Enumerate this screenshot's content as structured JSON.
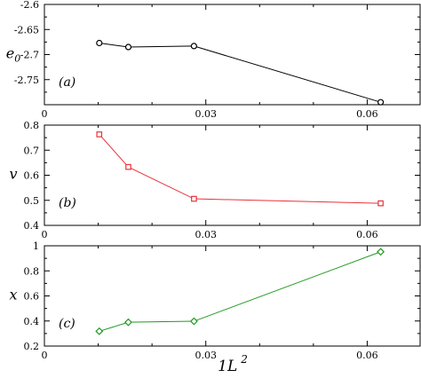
{
  "chart_data": [
    {
      "type": "line",
      "panel_label": "(a)",
      "ylabel": "e",
      "ylabel_sub": "0",
      "x": [
        0.0102,
        0.0156,
        0.0278,
        0.0625
      ],
      "series": [
        {
          "values": [
            -2.677,
            -2.685,
            -2.683,
            -2.795
          ],
          "color": "#000000",
          "marker": "circle"
        }
      ],
      "xlim": [
        0,
        0.07
      ],
      "ylim": [
        -2.8,
        -2.6
      ],
      "xticks": [
        0,
        0.03,
        0.06
      ],
      "xtick_labels": [
        "0",
        "0.03",
        "0.06"
      ],
      "yticks": [
        -2.6,
        -2.65,
        -2.7,
        -2.75
      ],
      "ytick_labels": [
        "-2.6",
        "-2.65",
        "-2.7",
        "-2.75"
      ]
    },
    {
      "type": "line",
      "panel_label": "(b)",
      "ylabel": "v",
      "x": [
        0.0102,
        0.0156,
        0.0278,
        0.0625
      ],
      "series": [
        {
          "values": [
            0.763,
            0.633,
            0.506,
            0.488
          ],
          "color": "#e8323a",
          "marker": "square"
        }
      ],
      "xlim": [
        0,
        0.07
      ],
      "ylim": [
        0.4,
        0.8
      ],
      "xticks": [
        0,
        0.03,
        0.06
      ],
      "xtick_labels": [
        "0",
        "0.03",
        "0.06"
      ],
      "yticks": [
        0.4,
        0.5,
        0.6,
        0.7,
        0.8
      ],
      "ytick_labels": [
        "0.4",
        "0.5",
        "0.6",
        "0.7",
        "0.8"
      ]
    },
    {
      "type": "line",
      "panel_label": "(c)",
      "ylabel": "x",
      "x": [
        0.0102,
        0.0156,
        0.0278,
        0.0625
      ],
      "series": [
        {
          "values": [
            0.318,
            0.39,
            0.398,
            0.952
          ],
          "color": "#1f9a1f",
          "marker": "diamond"
        }
      ],
      "xlim": [
        0,
        0.07
      ],
      "ylim": [
        0.2,
        1.0
      ],
      "xticks": [
        0,
        0.03,
        0.06
      ],
      "xtick_labels": [
        "0",
        "0.03",
        "0.06"
      ],
      "yticks": [
        0.2,
        0.4,
        0.6,
        0.8,
        1.0
      ],
      "ytick_labels": [
        "0.2",
        "0.4",
        "0.6",
        "0.8",
        "1"
      ],
      "xlabel": "1L",
      "xlabel_sup": "2"
    }
  ]
}
